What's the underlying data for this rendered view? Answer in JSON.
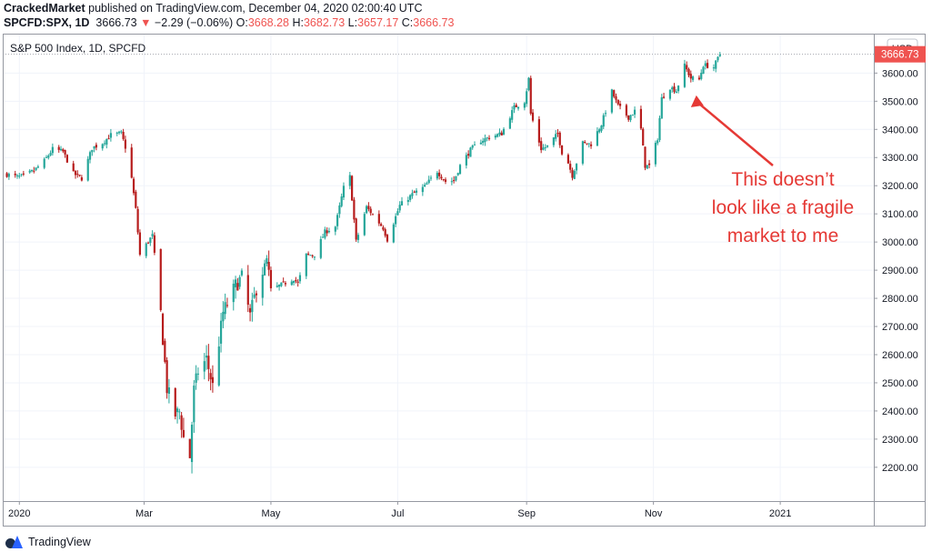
{
  "header": {
    "author": "CrackedMarket",
    "published": " published on TradingView.com, December 04, 2020 02:00:40 UTC",
    "symbol": "SPCFD:SPX, 1D",
    "last": "3666.73",
    "change_arrow": "▼",
    "change": "−2.29 (−0.06%)",
    "open_label": "O:",
    "open": "3668.28",
    "high_label": "H:",
    "high": "3682.73",
    "low_label": "L:",
    "low": "3657.17",
    "close_label": "C:",
    "close": "3666.73"
  },
  "footer": {
    "brand": "TradingView",
    "logo_icon": "tradingview-logo-icon"
  },
  "colors": {
    "up": "#26a69a",
    "down": "#b71c1c",
    "price_tag": "#ef5350",
    "annotation": "#e53935",
    "grid": "#f0f3fa"
  },
  "chart_data": {
    "type": "candlestick",
    "title": "S&P 500 Index, 1D, SPCFD",
    "currency_label": "USD",
    "last_price_label": "3666.73",
    "last_price": 3666.73,
    "y_ticks": [
      2200,
      2300,
      2400,
      2500,
      2600,
      2700,
      2800,
      2900,
      3000,
      3100,
      3200,
      3300,
      3400,
      3500,
      3600
    ],
    "y_tick_labels": [
      "2200.00",
      "2300.00",
      "2400.00",
      "2500.00",
      "2600.00",
      "2700.00",
      "2800.00",
      "2900.00",
      "3000.00",
      "3100.00",
      "3200.00",
      "3300.00",
      "3400.00",
      "3500.00",
      "3600.00"
    ],
    "ylim": [
      2080,
      3740
    ],
    "x_range": [
      "2019-12-24",
      "2021-02-15"
    ],
    "x_ticks": [
      {
        "label": "2020",
        "date": "2020-01-01"
      },
      {
        "label": "Mar",
        "date": "2020-03-01"
      },
      {
        "label": "May",
        "date": "2020-05-01"
      },
      {
        "label": "Jul",
        "date": "2020-07-01"
      },
      {
        "label": "Sep",
        "date": "2020-09-01"
      },
      {
        "label": "Nov",
        "date": "2020-11-01"
      },
      {
        "label": "2021",
        "date": "2021-01-01"
      }
    ],
    "grid": true,
    "closes": [
      [
        "2019-12-26",
        3240
      ],
      [
        "2019-12-31",
        3231
      ],
      [
        "2020-01-03",
        3235
      ],
      [
        "2020-01-08",
        3253
      ],
      [
        "2020-01-13",
        3288
      ],
      [
        "2020-01-17",
        3330
      ],
      [
        "2020-01-22",
        3321
      ],
      [
        "2020-01-27",
        3243
      ],
      [
        "2020-01-31",
        3226
      ],
      [
        "2020-02-05",
        3334
      ],
      [
        "2020-02-10",
        3352
      ],
      [
        "2020-02-14",
        3380
      ],
      [
        "2020-02-19",
        3386
      ],
      [
        "2020-02-21",
        3337
      ],
      [
        "2020-02-24",
        3226
      ],
      [
        "2020-02-26",
        3116
      ],
      [
        "2020-02-28",
        2954
      ],
      [
        "2020-03-03",
        3003
      ],
      [
        "2020-03-05",
        3023
      ],
      [
        "2020-03-09",
        2746
      ],
      [
        "2020-03-12",
        2480
      ],
      [
        "2020-03-16",
        2386
      ],
      [
        "2020-03-18",
        2398
      ],
      [
        "2020-03-20",
        2304
      ],
      [
        "2020-03-23",
        2237
      ],
      [
        "2020-03-25",
        2475
      ],
      [
        "2020-03-27",
        2541
      ],
      [
        "2020-03-31",
        2584
      ],
      [
        "2020-04-03",
        2488
      ],
      [
        "2020-04-08",
        2750
      ],
      [
        "2020-04-14",
        2846
      ],
      [
        "2020-04-17",
        2874
      ],
      [
        "2020-04-21",
        2736
      ],
      [
        "2020-04-24",
        2836
      ],
      [
        "2020-04-29",
        2939
      ],
      [
        "2020-05-01",
        2830
      ],
      [
        "2020-05-06",
        2848
      ],
      [
        "2020-05-12",
        2870
      ],
      [
        "2020-05-14",
        2852
      ],
      [
        "2020-05-18",
        2954
      ],
      [
        "2020-05-22",
        2955
      ],
      [
        "2020-05-27",
        3036
      ],
      [
        "2020-06-01",
        3055
      ],
      [
        "2020-06-05",
        3193
      ],
      [
        "2020-06-08",
        3232
      ],
      [
        "2020-06-11",
        3002
      ],
      [
        "2020-06-16",
        3124
      ],
      [
        "2020-06-19",
        3097
      ],
      [
        "2020-06-24",
        3050
      ],
      [
        "2020-06-26",
        3009
      ],
      [
        "2020-07-02",
        3130
      ],
      [
        "2020-07-08",
        3169
      ],
      [
        "2020-07-14",
        3197
      ],
      [
        "2020-07-20",
        3251
      ],
      [
        "2020-07-24",
        3215
      ],
      [
        "2020-07-28",
        3218
      ],
      [
        "2020-07-31",
        3271
      ],
      [
        "2020-08-05",
        3327
      ],
      [
        "2020-08-10",
        3360
      ],
      [
        "2020-08-14",
        3372
      ],
      [
        "2020-08-20",
        3385
      ],
      [
        "2020-08-26",
        3478
      ],
      [
        "2020-08-31",
        3500
      ],
      [
        "2020-09-02",
        3580
      ],
      [
        "2020-09-03",
        3455
      ],
      [
        "2020-09-08",
        3331
      ],
      [
        "2020-09-11",
        3340
      ],
      [
        "2020-09-16",
        3385
      ],
      [
        "2020-09-18",
        3319
      ],
      [
        "2020-09-21",
        3281
      ],
      [
        "2020-09-23",
        3236
      ],
      [
        "2020-09-28",
        3351
      ],
      [
        "2020-10-02",
        3348
      ],
      [
        "2020-10-07",
        3419
      ],
      [
        "2020-10-12",
        3534
      ],
      [
        "2020-10-15",
        3483
      ],
      [
        "2020-10-20",
        3443
      ],
      [
        "2020-10-23",
        3465
      ],
      [
        "2020-10-26",
        3400
      ],
      [
        "2020-10-28",
        3271
      ],
      [
        "2020-10-30",
        3270
      ],
      [
        "2020-11-03",
        3369
      ],
      [
        "2020-11-05",
        3510
      ],
      [
        "2020-11-09",
        3550
      ],
      [
        "2020-11-12",
        3537
      ],
      [
        "2020-11-16",
        3626
      ],
      [
        "2020-11-19",
        3582
      ],
      [
        "2020-11-23",
        3577
      ],
      [
        "2020-11-25",
        3629
      ],
      [
        "2020-11-30",
        3621
      ],
      [
        "2020-12-03",
        3666.73
      ]
    ],
    "annotation": {
      "lines": [
        "This doesn’t",
        "look like a fragile",
        "market to me"
      ],
      "arrow_to": [
        "2020-11-19",
        3540
      ]
    }
  }
}
